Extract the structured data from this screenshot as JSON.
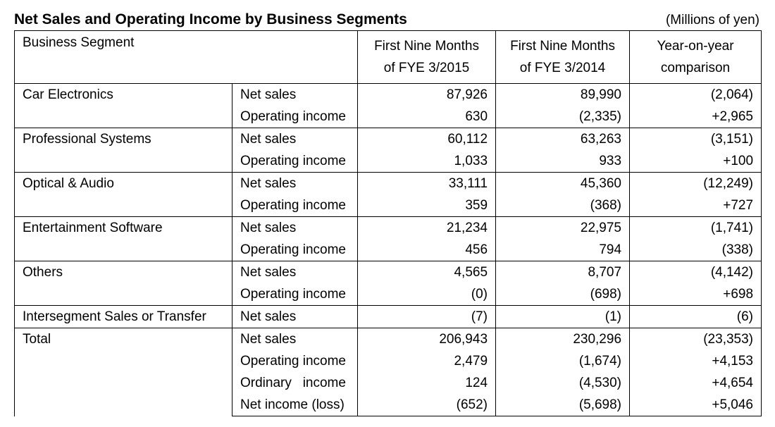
{
  "title": "Net Sales and Operating Income by Business Segments",
  "unit_note": "(Millions of yen)",
  "headers": {
    "segment": "Business Segment",
    "col1_line1": "First Nine Months",
    "col1_line2": "of FYE 3/2015",
    "col2_line1": "First Nine Months",
    "col2_line2": "of FYE 3/2014",
    "col3_line1": "Year-on-year",
    "col3_line2": "comparison"
  },
  "segments": [
    {
      "name": "Car Electronics",
      "rows": [
        {
          "label": "Net sales",
          "fye2015": "87,926",
          "fye2014": "89,990",
          "yoy": "(2,064)"
        },
        {
          "label": "Operating income",
          "fye2015": "630",
          "fye2014": "(2,335)",
          "yoy": "+2,965"
        }
      ]
    },
    {
      "name": "Professional Systems",
      "rows": [
        {
          "label": "Net sales",
          "fye2015": "60,112",
          "fye2014": "63,263",
          "yoy": "(3,151)"
        },
        {
          "label": "Operating income",
          "fye2015": "1,033",
          "fye2014": "933",
          "yoy": "+100"
        }
      ]
    },
    {
      "name": "Optical & Audio",
      "rows": [
        {
          "label": "Net sales",
          "fye2015": "33,111",
          "fye2014": "45,360",
          "yoy": "(12,249)"
        },
        {
          "label": "Operating income",
          "fye2015": "359",
          "fye2014": "(368)",
          "yoy": "+727"
        }
      ]
    },
    {
      "name": "Entertainment Software",
      "rows": [
        {
          "label": "Net sales",
          "fye2015": "21,234",
          "fye2014": "22,975",
          "yoy": "(1,741)"
        },
        {
          "label": "Operating income",
          "fye2015": "456",
          "fye2014": "794",
          "yoy": "(338)"
        }
      ]
    },
    {
      "name": "Others",
      "rows": [
        {
          "label": "Net sales",
          "fye2015": "4,565",
          "fye2014": "8,707",
          "yoy": "(4,142)"
        },
        {
          "label": "Operating income",
          "fye2015": "(0)",
          "fye2014": "(698)",
          "yoy": "+698"
        }
      ]
    },
    {
      "name": "Intersegment Sales or Transfer",
      "rows": [
        {
          "label": "Net sales",
          "fye2015": "(7)",
          "fye2014": "(1)",
          "yoy": "(6)"
        }
      ]
    },
    {
      "name": "Total",
      "rows": [
        {
          "label": "Net sales",
          "fye2015": "206,943",
          "fye2014": "230,296",
          "yoy": "(23,353)"
        },
        {
          "label": "Operating income",
          "fye2015": "2,479",
          "fye2014": "(1,674)",
          "yoy": "+4,153"
        },
        {
          "label": "Ordinary   income",
          "fye2015": "124",
          "fye2014": "(4,530)",
          "yoy": "+4,654"
        },
        {
          "label": "Net income (loss)",
          "fye2015": "(652)",
          "fye2014": "(5,698)",
          "yoy": "+5,046"
        }
      ]
    }
  ]
}
